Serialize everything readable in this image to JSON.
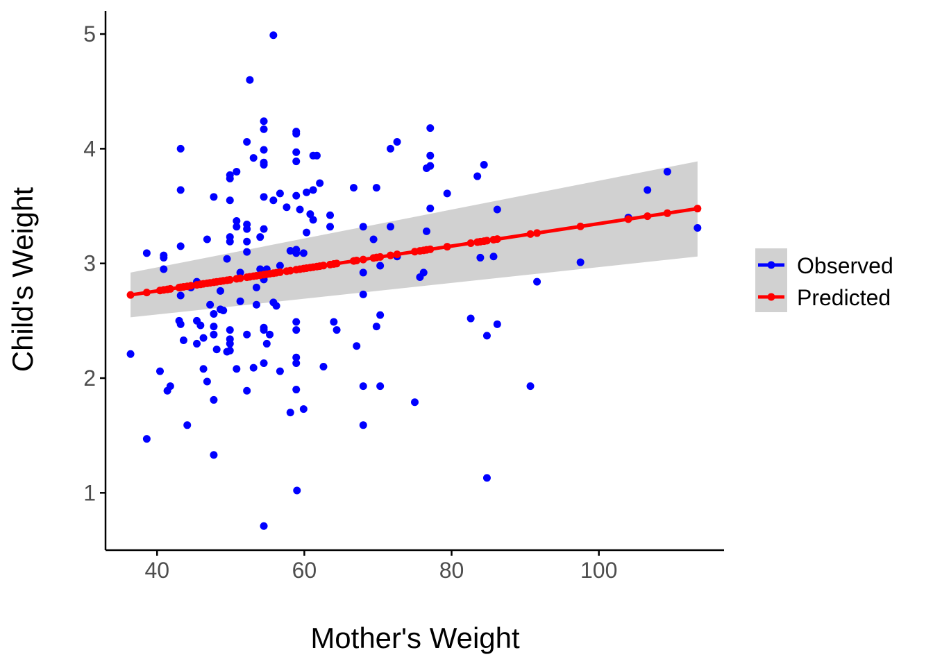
{
  "chart_data": {
    "type": "scatter",
    "xlabel": "Mother's Weight",
    "ylabel": "Child's Weight",
    "xlim": [
      33,
      117
    ],
    "ylim": [
      0.5,
      5.2
    ],
    "x_ticks": [
      40,
      60,
      80,
      100
    ],
    "y_ticks": [
      1,
      2,
      3,
      4,
      5
    ],
    "grid": false,
    "legend_position": "right",
    "colors": {
      "observed": "#0000ff",
      "predicted": "#ff0000",
      "band": "#bebebe"
    },
    "fit": {
      "x": [
        36.4,
        113.4
      ],
      "y": [
        2.725,
        3.478
      ],
      "ci_lower": [
        2.53,
        3.06
      ],
      "ci_upper": [
        2.92,
        3.89
      ]
    },
    "series": [
      {
        "name": "Observed",
        "points": [
          [
            36.4,
            2.21
          ],
          [
            38.6,
            3.09
          ],
          [
            38.6,
            1.47
          ],
          [
            40.4,
            2.06
          ],
          [
            40.9,
            3.07
          ],
          [
            40.9,
            3.05
          ],
          [
            40.9,
            2.95
          ],
          [
            41.4,
            1.89
          ],
          [
            41.8,
            1.93
          ],
          [
            43.0,
            2.5
          ],
          [
            43.2,
            2.72
          ],
          [
            43.2,
            2.47
          ],
          [
            43.2,
            3.15
          ],
          [
            43.2,
            3.64
          ],
          [
            43.2,
            4.0
          ],
          [
            43.6,
            2.33
          ],
          [
            44.1,
            1.59
          ],
          [
            44.6,
            2.79
          ],
          [
            45.4,
            2.5
          ],
          [
            45.4,
            2.3
          ],
          [
            45.4,
            2.84
          ],
          [
            45.9,
            2.46
          ],
          [
            46.3,
            2.08
          ],
          [
            46.3,
            2.35
          ],
          [
            46.8,
            1.97
          ],
          [
            46.8,
            3.21
          ],
          [
            47.2,
            2.64
          ],
          [
            47.7,
            1.81
          ],
          [
            47.7,
            2.45
          ],
          [
            47.7,
            2.38
          ],
          [
            47.7,
            2.56
          ],
          [
            47.7,
            1.33
          ],
          [
            47.7,
            3.58
          ],
          [
            48.1,
            2.25
          ],
          [
            48.6,
            2.76
          ],
          [
            48.6,
            2.6
          ],
          [
            49.0,
            2.59
          ],
          [
            49.5,
            2.23
          ],
          [
            49.5,
            3.04
          ],
          [
            49.9,
            2.42
          ],
          [
            49.9,
            2.34
          ],
          [
            49.9,
            2.3
          ],
          [
            49.9,
            2.24
          ],
          [
            49.9,
            3.19
          ],
          [
            49.9,
            3.23
          ],
          [
            49.9,
            3.55
          ],
          [
            49.9,
            3.74
          ],
          [
            49.9,
            3.77
          ],
          [
            50.8,
            3.32
          ],
          [
            50.8,
            3.37
          ],
          [
            50.8,
            3.8
          ],
          [
            50.8,
            2.08
          ],
          [
            51.3,
            2.67
          ],
          [
            51.3,
            2.92
          ],
          [
            52.2,
            1.89
          ],
          [
            52.2,
            2.38
          ],
          [
            52.2,
            3.1
          ],
          [
            52.2,
            3.19
          ],
          [
            52.2,
            3.3
          ],
          [
            52.2,
            3.34
          ],
          [
            52.2,
            4.06
          ],
          [
            52.6,
            4.6
          ],
          [
            53.1,
            2.09
          ],
          [
            53.1,
            3.92
          ],
          [
            53.5,
            2.64
          ],
          [
            53.5,
            2.79
          ],
          [
            54.0,
            3.23
          ],
          [
            54.0,
            2.95
          ],
          [
            54.5,
            0.71
          ],
          [
            54.5,
            2.13
          ],
          [
            54.5,
            2.42
          ],
          [
            54.5,
            2.44
          ],
          [
            54.5,
            2.86
          ],
          [
            54.5,
            3.3
          ],
          [
            54.5,
            3.58
          ],
          [
            54.5,
            3.86
          ],
          [
            54.5,
            3.88
          ],
          [
            54.5,
            3.99
          ],
          [
            54.5,
            4.17
          ],
          [
            54.5,
            4.24
          ],
          [
            54.9,
            2.3
          ],
          [
            54.9,
            2.95
          ],
          [
            55.3,
            2.38
          ],
          [
            55.8,
            4.99
          ],
          [
            55.8,
            2.66
          ],
          [
            55.8,
            3.55
          ],
          [
            56.2,
            2.63
          ],
          [
            56.7,
            2.06
          ],
          [
            56.7,
            2.98
          ],
          [
            56.7,
            3.61
          ],
          [
            57.6,
            3.49
          ],
          [
            58.1,
            1.7
          ],
          [
            58.1,
            3.11
          ],
          [
            58.9,
            1.9
          ],
          [
            58.9,
            2.13
          ],
          [
            58.9,
            2.18
          ],
          [
            58.9,
            2.42
          ],
          [
            58.9,
            2.49
          ],
          [
            58.9,
            3.09
          ],
          [
            58.9,
            3.12
          ],
          [
            58.9,
            3.59
          ],
          [
            58.9,
            3.89
          ],
          [
            58.9,
            3.97
          ],
          [
            58.9,
            4.13
          ],
          [
            58.9,
            4.15
          ],
          [
            59.0,
            1.02
          ],
          [
            59.4,
            3.47
          ],
          [
            59.9,
            1.73
          ],
          [
            59.9,
            3.09
          ],
          [
            60.3,
            3.27
          ],
          [
            60.3,
            3.62
          ],
          [
            60.8,
            3.43
          ],
          [
            61.2,
            3.64
          ],
          [
            61.2,
            3.94
          ],
          [
            61.2,
            3.38
          ],
          [
            61.7,
            3.94
          ],
          [
            62.1,
            3.7
          ],
          [
            62.6,
            2.1
          ],
          [
            63.5,
            3.42
          ],
          [
            63.5,
            3.32
          ],
          [
            64.0,
            2.49
          ],
          [
            64.4,
            2.42
          ],
          [
            66.7,
            3.66
          ],
          [
            67.1,
            2.28
          ],
          [
            68.0,
            1.59
          ],
          [
            68.0,
            1.93
          ],
          [
            68.0,
            2.73
          ],
          [
            68.0,
            2.92
          ],
          [
            68.0,
            3.32
          ],
          [
            69.4,
            3.21
          ],
          [
            69.8,
            2.45
          ],
          [
            69.8,
            3.66
          ],
          [
            70.3,
            1.93
          ],
          [
            70.3,
            2.55
          ],
          [
            70.3,
            2.98
          ],
          [
            71.7,
            3.32
          ],
          [
            71.7,
            4.0
          ],
          [
            72.6,
            4.06
          ],
          [
            72.6,
            3.06
          ],
          [
            75.0,
            1.79
          ],
          [
            75.7,
            2.88
          ],
          [
            76.2,
            2.92
          ],
          [
            76.6,
            3.28
          ],
          [
            76.6,
            3.83
          ],
          [
            77.1,
            3.85
          ],
          [
            77.1,
            3.94
          ],
          [
            77.1,
            3.48
          ],
          [
            77.1,
            4.18
          ],
          [
            79.4,
            3.61
          ],
          [
            82.6,
            2.52
          ],
          [
            83.5,
            3.76
          ],
          [
            83.9,
            3.05
          ],
          [
            84.4,
            3.86
          ],
          [
            84.8,
            2.37
          ],
          [
            84.8,
            1.13
          ],
          [
            85.7,
            3.06
          ],
          [
            86.2,
            3.47
          ],
          [
            86.2,
            2.47
          ],
          [
            90.7,
            1.93
          ],
          [
            91.6,
            2.84
          ],
          [
            97.5,
            3.01
          ],
          [
            104.0,
            3.4
          ],
          [
            106.6,
            3.64
          ],
          [
            109.3,
            3.8
          ],
          [
            113.4,
            3.31
          ]
        ]
      },
      {
        "name": "Predicted",
        "x": [
          36.4,
          38.6,
          40.4,
          40.9,
          41.4,
          41.8,
          43.0,
          43.2,
          43.6,
          44.1,
          44.6,
          45.4,
          45.9,
          46.3,
          46.8,
          47.2,
          47.7,
          48.1,
          48.6,
          49.0,
          49.5,
          49.9,
          50.8,
          51.3,
          52.2,
          52.6,
          53.1,
          53.5,
          54.0,
          54.5,
          54.9,
          55.3,
          55.8,
          56.2,
          56.7,
          57.6,
          58.1,
          58.9,
          59.4,
          59.9,
          60.3,
          60.8,
          61.2,
          61.7,
          62.1,
          62.6,
          63.5,
          64.0,
          64.4,
          66.7,
          67.1,
          68.0,
          69.4,
          69.8,
          70.3,
          71.7,
          72.6,
          75.0,
          75.7,
          76.2,
          76.6,
          77.1,
          79.4,
          82.6,
          83.5,
          83.9,
          84.4,
          84.8,
          85.7,
          86.2,
          90.7,
          91.6,
          97.5,
          104.0,
          106.6,
          109.3,
          113.4
        ]
      }
    ]
  }
}
